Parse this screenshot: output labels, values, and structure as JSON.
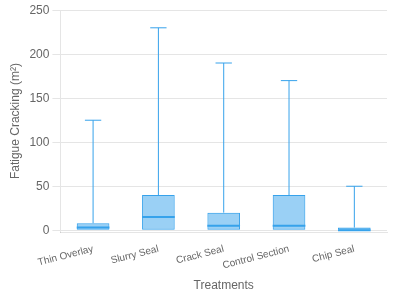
{
  "chart_data": {
    "type": "box",
    "xlabel": "Treatments",
    "ylabel": "Fatigue Cracking (m²)",
    "categories": [
      "Thin Overlay",
      "Slurry Seal",
      "Crack Seal",
      "Control Section",
      "Chip Seal"
    ],
    "min": [
      0,
      0,
      0,
      0,
      0
    ],
    "q1": [
      0,
      0,
      0,
      0,
      0
    ],
    "median": [
      3,
      15,
      5,
      5,
      0
    ],
    "q3": [
      8,
      40,
      20,
      40,
      3
    ],
    "max": [
      125,
      230,
      190,
      170,
      50
    ],
    "ylim": [
      -2,
      250
    ],
    "yticks": [
      0,
      50,
      100,
      150,
      200,
      250
    ],
    "grid": true
  }
}
